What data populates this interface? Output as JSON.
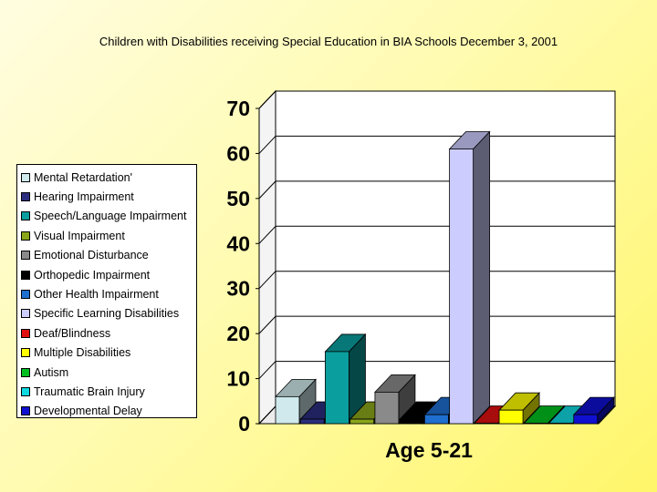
{
  "chart_data": {
    "type": "bar",
    "title": "Children with Disabilities receiving Special Education in BIA Schools December 3, 2001",
    "categories": [
      "Age 5-21"
    ],
    "xlabel": "Age 5-21",
    "ylabel": "",
    "ylim": [
      0,
      70
    ],
    "yticks": [
      "0",
      "10",
      "20",
      "30",
      "40",
      "50",
      "60",
      "70"
    ],
    "grid": true,
    "legend_position": "left",
    "series": [
      {
        "name": "Mental Retardation'",
        "values": [
          6
        ],
        "color": "#cfe9ec"
      },
      {
        "name": "Hearing Impairment",
        "values": [
          1
        ],
        "color": "#2b2d7e"
      },
      {
        "name": "Speech/Language Impairment",
        "values": [
          16
        ],
        "color": "#0b9e9e"
      },
      {
        "name": "Visual Impairment",
        "values": [
          1
        ],
        "color": "#8aa61a"
      },
      {
        "name": "Emotional Disturbance",
        "values": [
          7
        ],
        "color": "#8a8a8a"
      },
      {
        "name": "Orthopedic Impairment",
        "values": [
          1
        ],
        "color": "#000000"
      },
      {
        "name": "Other Health Impairment",
        "values": [
          2
        ],
        "color": "#1f6fd0"
      },
      {
        "name": "Specific Learning Disabilities",
        "values": [
          61
        ],
        "color": "#ccccff"
      },
      {
        "name": "Deaf/Blindness",
        "values": [
          0
        ],
        "color": "#e01010"
      },
      {
        "name": "Multiple Disabilities",
        "values": [
          3
        ],
        "color": "#ffff00"
      },
      {
        "name": "Autism",
        "values": [
          0
        ],
        "color": "#00c020"
      },
      {
        "name": "Traumatic Brain Injury",
        "values": [
          0
        ],
        "color": "#10d8e0"
      },
      {
        "name": "Developmental Delay",
        "values": [
          2
        ],
        "color": "#1010d0"
      }
    ]
  }
}
